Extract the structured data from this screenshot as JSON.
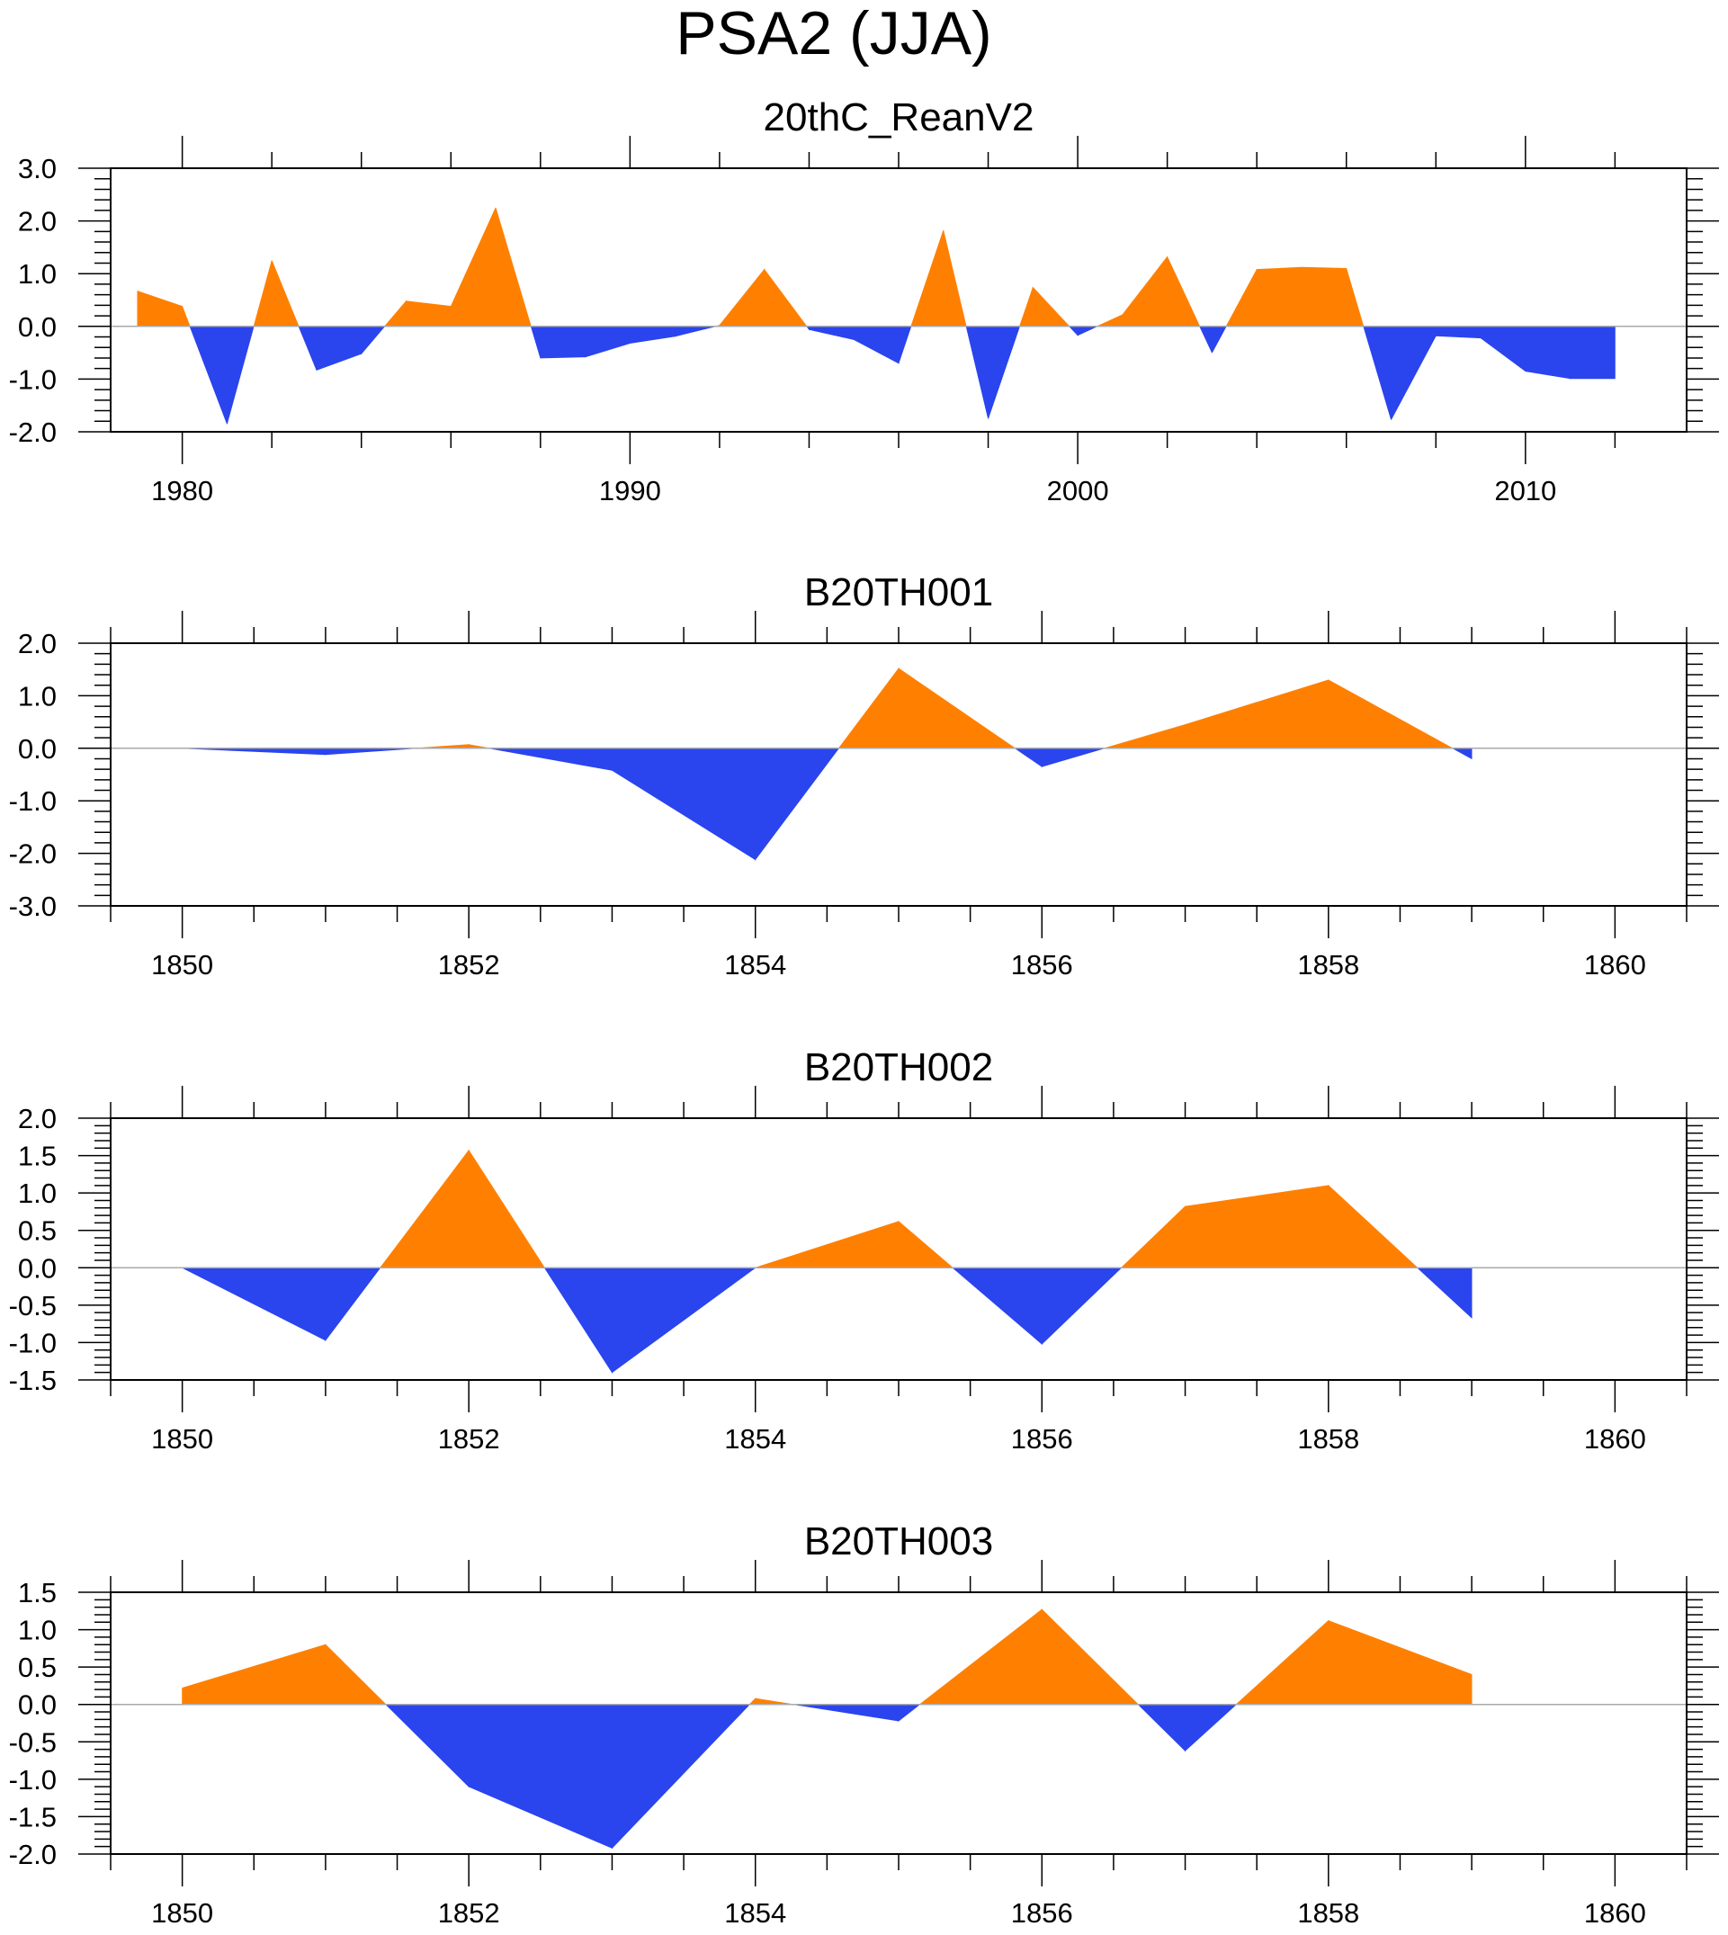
{
  "figure_title": "PSA2 (JJA)",
  "colors": {
    "positive": "#ff8000",
    "negative": "#2a44ee",
    "axis": "#000000",
    "zero_line": "#aaaaaa"
  },
  "chart_data": [
    {
      "type": "area",
      "title": "20thC_ReanV2",
      "xlabel": "",
      "ylabel": "",
      "xlim": [
        1978.4,
        2013.6
      ],
      "ylim": [
        -2.0,
        3.0
      ],
      "x_major_ticks": [
        1980,
        1990,
        2000,
        2010
      ],
      "x_tick_labels": [
        "1980",
        "1990",
        "2000",
        "2010"
      ],
      "x_minor_step": 2,
      "y_major_ticks": [
        -2.0,
        -1.0,
        0.0,
        1.0,
        2.0,
        3.0
      ],
      "y_tick_labels": [
        "-2.0",
        "-1.0",
        "0.0",
        "1.0",
        "2.0",
        "3.0"
      ],
      "y_minor_step": 0.2,
      "x": [
        1979,
        1980,
        1981,
        1982,
        1983,
        1984,
        1985,
        1986,
        1987,
        1988,
        1989,
        1990,
        1991,
        1992,
        1993,
        1994,
        1995,
        1996,
        1997,
        1998,
        1999,
        2000,
        2001,
        2002,
        2003,
        2004,
        2005,
        2006,
        2007,
        2008,
        2009,
        2010,
        2011,
        2012
      ],
      "values": [
        0.67,
        0.38,
        -1.85,
        1.25,
        -0.83,
        -0.52,
        0.48,
        0.38,
        2.25,
        -0.6,
        -0.58,
        -0.32,
        -0.19,
        0.02,
        1.08,
        -0.06,
        -0.25,
        -0.7,
        1.82,
        -1.75,
        0.74,
        -0.17,
        0.22,
        1.32,
        -0.5,
        1.08,
        1.12,
        1.1,
        -1.77,
        -0.18,
        -0.22,
        -0.85,
        -0.99,
        -0.99
      ]
    },
    {
      "type": "area",
      "title": "B20TH001",
      "xlabel": "",
      "ylabel": "",
      "xlim": [
        1849.5,
        1860.5
      ],
      "ylim": [
        -3.0,
        2.0
      ],
      "x_major_ticks": [
        1850,
        1852,
        1854,
        1856,
        1858,
        1860
      ],
      "x_tick_labels": [
        "1850",
        "1852",
        "1854",
        "1856",
        "1858",
        "1860"
      ],
      "x_minor_step": 0.5,
      "y_major_ticks": [
        -3.0,
        -2.0,
        -1.0,
        0.0,
        1.0,
        2.0
      ],
      "y_tick_labels": [
        "-3.0",
        "-2.0",
        "-1.0",
        "0.0",
        "1.0",
        "2.0"
      ],
      "y_minor_step": 0.2,
      "x": [
        1850,
        1851,
        1852,
        1853,
        1854,
        1855,
        1856,
        1857,
        1858,
        1859
      ],
      "values": [
        0.0,
        -0.12,
        0.07,
        -0.42,
        -2.12,
        1.52,
        -0.35,
        0.45,
        1.3,
        -0.2
      ]
    },
    {
      "type": "area",
      "title": "B20TH002",
      "xlabel": "",
      "ylabel": "",
      "xlim": [
        1849.5,
        1860.5
      ],
      "ylim": [
        -1.5,
        2.0
      ],
      "x_major_ticks": [
        1850,
        1852,
        1854,
        1856,
        1858,
        1860
      ],
      "x_tick_labels": [
        "1850",
        "1852",
        "1854",
        "1856",
        "1858",
        "1860"
      ],
      "x_minor_step": 0.5,
      "y_major_ticks": [
        -1.5,
        -1.0,
        -0.5,
        0.0,
        0.5,
        1.0,
        1.5,
        2.0
      ],
      "y_tick_labels": [
        "-1.5",
        "-1.0",
        "-0.5",
        "0.0",
        "0.5",
        "1.0",
        "1.5",
        "2.0"
      ],
      "y_minor_step": 0.1,
      "x": [
        1850,
        1851,
        1852,
        1853,
        1854,
        1855,
        1856,
        1857,
        1858,
        1859
      ],
      "values": [
        0.0,
        -0.97,
        1.57,
        -1.4,
        0.0,
        0.62,
        -1.02,
        0.82,
        1.1,
        -0.67
      ]
    },
    {
      "type": "area",
      "title": "B20TH003",
      "xlabel": "",
      "ylabel": "",
      "xlim": [
        1849.5,
        1860.5
      ],
      "ylim": [
        -2.0,
        1.5
      ],
      "x_major_ticks": [
        1850,
        1852,
        1854,
        1856,
        1858,
        1860
      ],
      "x_tick_labels": [
        "1850",
        "1852",
        "1854",
        "1856",
        "1858",
        "1860"
      ],
      "x_minor_step": 0.5,
      "y_major_ticks": [
        -2.0,
        -1.5,
        -1.0,
        -0.5,
        0.0,
        0.5,
        1.0,
        1.5
      ],
      "y_tick_labels": [
        "-2.0",
        "-1.5",
        "-1.0",
        "-0.5",
        "0.0",
        "0.5",
        "1.0",
        "1.5"
      ],
      "y_minor_step": 0.1,
      "x": [
        1850,
        1851,
        1852,
        1853,
        1854,
        1855,
        1856,
        1857,
        1858,
        1859
      ],
      "values": [
        0.22,
        0.8,
        -1.1,
        -1.92,
        0.08,
        -0.22,
        1.27,
        -0.62,
        1.12,
        0.4
      ]
    }
  ]
}
